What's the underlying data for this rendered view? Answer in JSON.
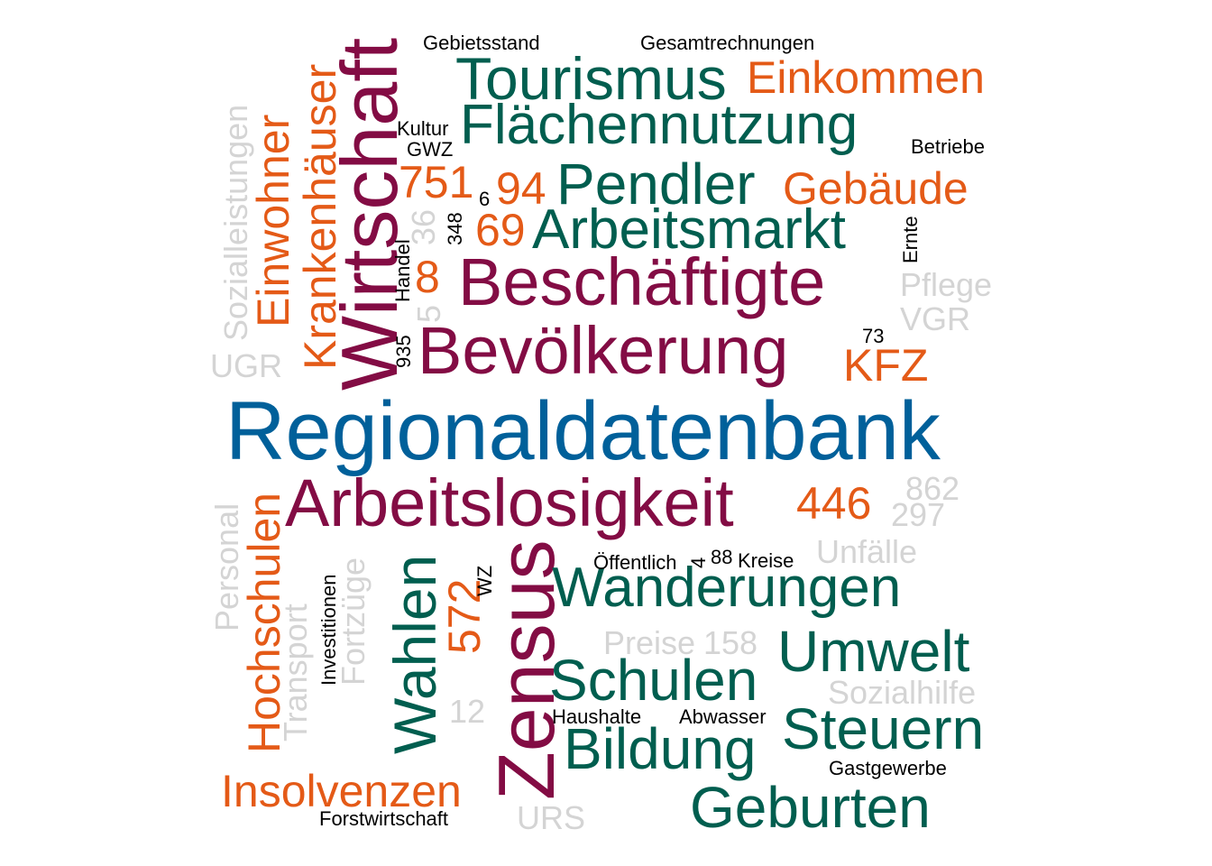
{
  "colors": {
    "blue": "#00609a",
    "teal": "#005e4f",
    "purple": "#830c44",
    "orange": "#e45a17",
    "grey": "#d4d4d4",
    "black": "#000000"
  },
  "words": [
    {
      "text": "Regionaldatenbank",
      "color": "blue"
    },
    {
      "text": "Arbeitslosigkeit",
      "color": "purple"
    },
    {
      "text": "Bevölkerung",
      "color": "purple"
    },
    {
      "text": "Beschäftigte",
      "color": "purple"
    },
    {
      "text": "Wirtschaft",
      "color": "purple",
      "vertical": true
    },
    {
      "text": "Zensus",
      "color": "purple",
      "vertical": true
    },
    {
      "text": "Tourismus",
      "color": "teal"
    },
    {
      "text": "Flächennutzung",
      "color": "teal"
    },
    {
      "text": "Pendler",
      "color": "teal"
    },
    {
      "text": "Arbeitsmarkt",
      "color": "teal"
    },
    {
      "text": "Wanderungen",
      "color": "teal"
    },
    {
      "text": "Umwelt",
      "color": "teal"
    },
    {
      "text": "Schulen",
      "color": "teal"
    },
    {
      "text": "Steuern",
      "color": "teal"
    },
    {
      "text": "Bildung",
      "color": "teal"
    },
    {
      "text": "Geburten",
      "color": "teal"
    },
    {
      "text": "Wahlen",
      "color": "teal",
      "vertical": true
    },
    {
      "text": "Einkommen",
      "color": "orange"
    },
    {
      "text": "Gebäude",
      "color": "orange"
    },
    {
      "text": "751",
      "color": "orange"
    },
    {
      "text": "94",
      "color": "orange"
    },
    {
      "text": "69",
      "color": "orange"
    },
    {
      "text": "8",
      "color": "orange"
    },
    {
      "text": "KFZ",
      "color": "orange"
    },
    {
      "text": "446",
      "color": "orange"
    },
    {
      "text": "Insolvenzen",
      "color": "orange"
    },
    {
      "text": "Einwohner",
      "color": "orange",
      "vertical": true
    },
    {
      "text": "Krankenhäuser",
      "color": "orange",
      "vertical": true
    },
    {
      "text": "Hochschulen",
      "color": "orange",
      "vertical": true
    },
    {
      "text": "572",
      "color": "orange",
      "vertical": true
    },
    {
      "text": "Pflege",
      "color": "grey"
    },
    {
      "text": "VGR",
      "color": "grey"
    },
    {
      "text": "UGR",
      "color": "grey"
    },
    {
      "text": "862",
      "color": "grey"
    },
    {
      "text": "297",
      "color": "grey"
    },
    {
      "text": "Unfälle",
      "color": "grey"
    },
    {
      "text": "Preise",
      "color": "grey"
    },
    {
      "text": "158",
      "color": "grey"
    },
    {
      "text": "Sozialhilfe",
      "color": "grey"
    },
    {
      "text": "12",
      "color": "grey"
    },
    {
      "text": "URS",
      "color": "grey"
    },
    {
      "text": "Sozialleistungen",
      "color": "grey",
      "vertical": true
    },
    {
      "text": "36",
      "color": "grey",
      "vertical": true
    },
    {
      "text": "5",
      "color": "grey",
      "vertical": true
    },
    {
      "text": "Personal",
      "color": "grey",
      "vertical": true
    },
    {
      "text": "Transport",
      "color": "grey",
      "vertical": true
    },
    {
      "text": "Fortzüge",
      "color": "grey",
      "vertical": true
    },
    {
      "text": "Gebietsstand",
      "color": "black"
    },
    {
      "text": "Gesamtrechnungen",
      "color": "black"
    },
    {
      "text": "Kultur",
      "color": "black"
    },
    {
      "text": "GWZ",
      "color": "black"
    },
    {
      "text": "Betriebe",
      "color": "black"
    },
    {
      "text": "6",
      "color": "black"
    },
    {
      "text": "73",
      "color": "black"
    },
    {
      "text": "Öffentlich",
      "color": "black"
    },
    {
      "text": "88",
      "color": "black"
    },
    {
      "text": "Kreise",
      "color": "black"
    },
    {
      "text": "Haushalte",
      "color": "black"
    },
    {
      "text": "Abwasser",
      "color": "black"
    },
    {
      "text": "Gastgewerbe",
      "color": "black"
    },
    {
      "text": "Forstwirtschaft",
      "color": "black"
    },
    {
      "text": "348",
      "color": "black",
      "vertical": true
    },
    {
      "text": "Handel",
      "color": "black",
      "vertical": true
    },
    {
      "text": "935",
      "color": "black",
      "vertical": true
    },
    {
      "text": "Ernte",
      "color": "black",
      "vertical": true
    },
    {
      "text": "4",
      "color": "black",
      "vertical": true
    },
    {
      "text": "WZ",
      "color": "black",
      "vertical": true
    },
    {
      "text": "Investitionen",
      "color": "black",
      "vertical": true
    }
  ]
}
